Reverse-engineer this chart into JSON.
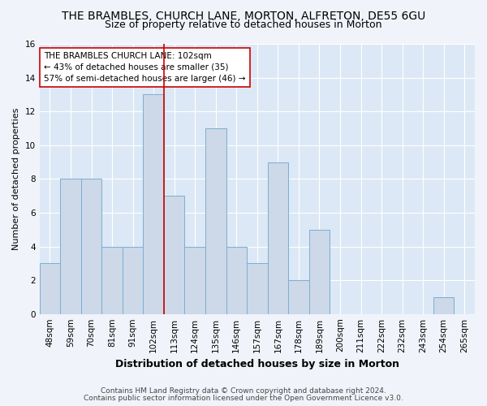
{
  "title": "THE BRAMBLES, CHURCH LANE, MORTON, ALFRETON, DE55 6GU",
  "subtitle": "Size of property relative to detached houses in Morton",
  "xlabel": "Distribution of detached houses by size in Morton",
  "ylabel": "Number of detached properties",
  "footnote1": "Contains HM Land Registry data © Crown copyright and database right 2024.",
  "footnote2": "Contains public sector information licensed under the Open Government Licence v3.0.",
  "categories": [
    "48sqm",
    "59sqm",
    "70sqm",
    "81sqm",
    "91sqm",
    "102sqm",
    "113sqm",
    "124sqm",
    "135sqm",
    "146sqm",
    "157sqm",
    "167sqm",
    "178sqm",
    "189sqm",
    "200sqm",
    "211sqm",
    "222sqm",
    "232sqm",
    "243sqm",
    "254sqm",
    "265sqm"
  ],
  "values": [
    3,
    8,
    8,
    4,
    4,
    13,
    7,
    4,
    11,
    4,
    3,
    9,
    2,
    5,
    0,
    0,
    0,
    0,
    0,
    1,
    0
  ],
  "highlight_index": 5,
  "bar_color": "#cdd8e8",
  "bar_edge_color": "#7aafd4",
  "highlight_line_color": "#cc0000",
  "annotation_box_text": "THE BRAMBLES CHURCH LANE: 102sqm\n← 43% of detached houses are smaller (35)\n57% of semi-detached houses are larger (46) →",
  "ylim": [
    0,
    16
  ],
  "yticks": [
    0,
    2,
    4,
    6,
    8,
    10,
    12,
    14,
    16
  ],
  "fig_bg_color": "#f0f4fa",
  "plot_bg_color": "#dce8f5",
  "grid_color": "#ffffff",
  "title_fontsize": 10,
  "subtitle_fontsize": 9,
  "xlabel_fontsize": 9,
  "ylabel_fontsize": 8,
  "tick_fontsize": 7.5,
  "annotation_fontsize": 7.5,
  "footnote_fontsize": 6.5
}
